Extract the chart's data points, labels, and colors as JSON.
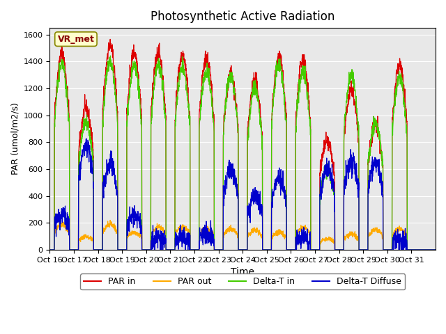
{
  "title": "Photosynthetic Active Radiation",
  "xlabel": "Time",
  "ylabel": "PAR (umol/m2/s)",
  "ylim": [
    0,
    1650
  ],
  "yticks": [
    0,
    200,
    400,
    600,
    800,
    1000,
    1200,
    1400,
    1600
  ],
  "background_color": "#e8e8e8",
  "legend_label": "VR_met",
  "series_labels": [
    "PAR in",
    "PAR out",
    "Delta-T in",
    "Delta-T Diffuse"
  ],
  "series_colors": [
    "#dd0000",
    "#ffaa00",
    "#44cc00",
    "#0000cc"
  ],
  "xtick_labels": [
    "Oct 16",
    "Oct 17",
    "Oct 18",
    "Oct 19",
    "Oct 20",
    "Oct 21",
    "Oct 22",
    "Oct 23",
    "Oct 24",
    "Oct 25",
    "Oct 26",
    "Oct 27",
    "Oct 28",
    "Oct 29",
    "Oct 30",
    "Oct 31"
  ],
  "n_days": 16,
  "pts_per_day": 144,
  "day_peaks_PAR_in": [
    1460,
    1050,
    1520,
    1470,
    1470,
    1450,
    1430,
    1310,
    1260,
    1430,
    1410,
    805,
    1200,
    930,
    1380,
    0
  ],
  "day_peaks_PAR_out": [
    190,
    100,
    190,
    130,
    170,
    170,
    160,
    155,
    145,
    130,
    165,
    85,
    115,
    150,
    155,
    0
  ],
  "day_peaks_DeltaTin": [
    1390,
    950,
    1400,
    1380,
    1380,
    1360,
    1330,
    1300,
    1200,
    1380,
    1330,
    590,
    1300,
    940,
    1290,
    0
  ],
  "day_peaks_DeltaTDif": [
    260,
    780,
    640,
    245,
    90,
    90,
    120,
    600,
    400,
    530,
    80,
    610,
    650,
    650,
    70,
    0
  ]
}
